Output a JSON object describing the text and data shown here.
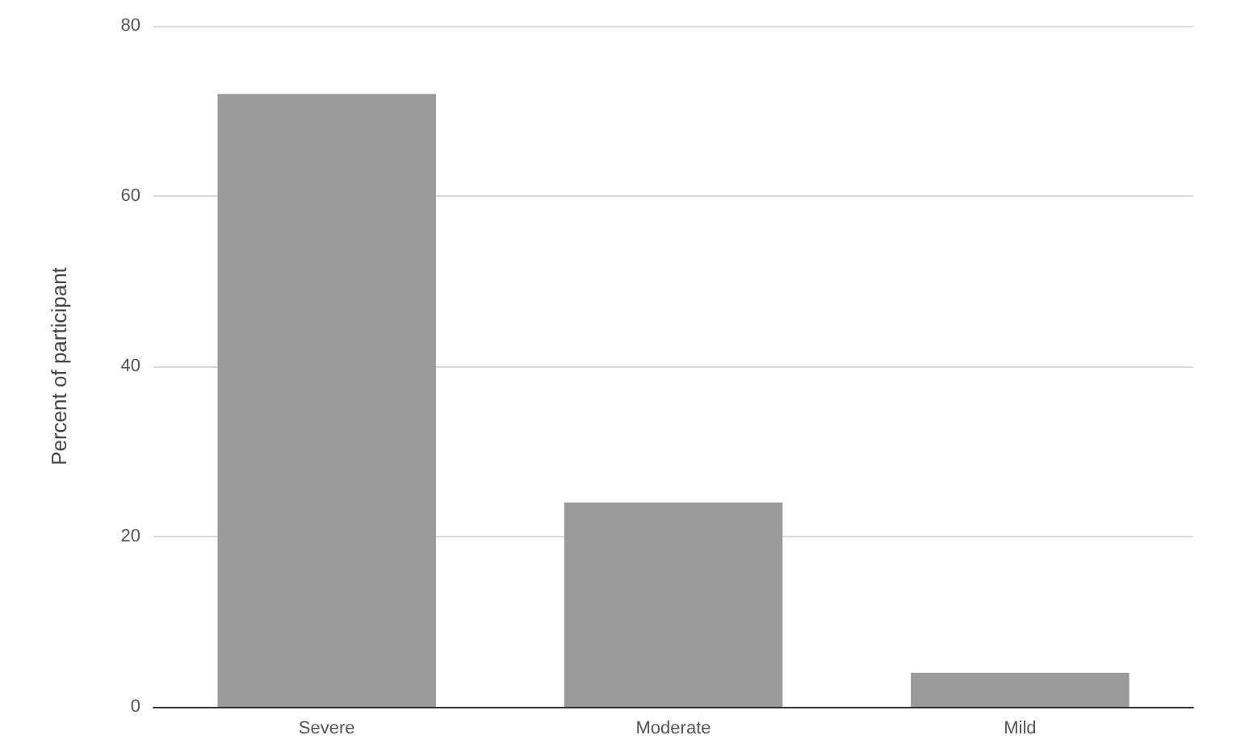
{
  "chart_data": {
    "type": "bar",
    "ylabel": "Percent of participant",
    "categories": [
      "Severe",
      "Moderate",
      "Mild"
    ],
    "values": [
      72,
      24,
      4
    ],
    "color": "#9a9a9a",
    "ylim": [
      0,
      80
    ],
    "yticks": [
      0,
      20,
      40,
      60,
      80
    ],
    "grid": "y"
  }
}
